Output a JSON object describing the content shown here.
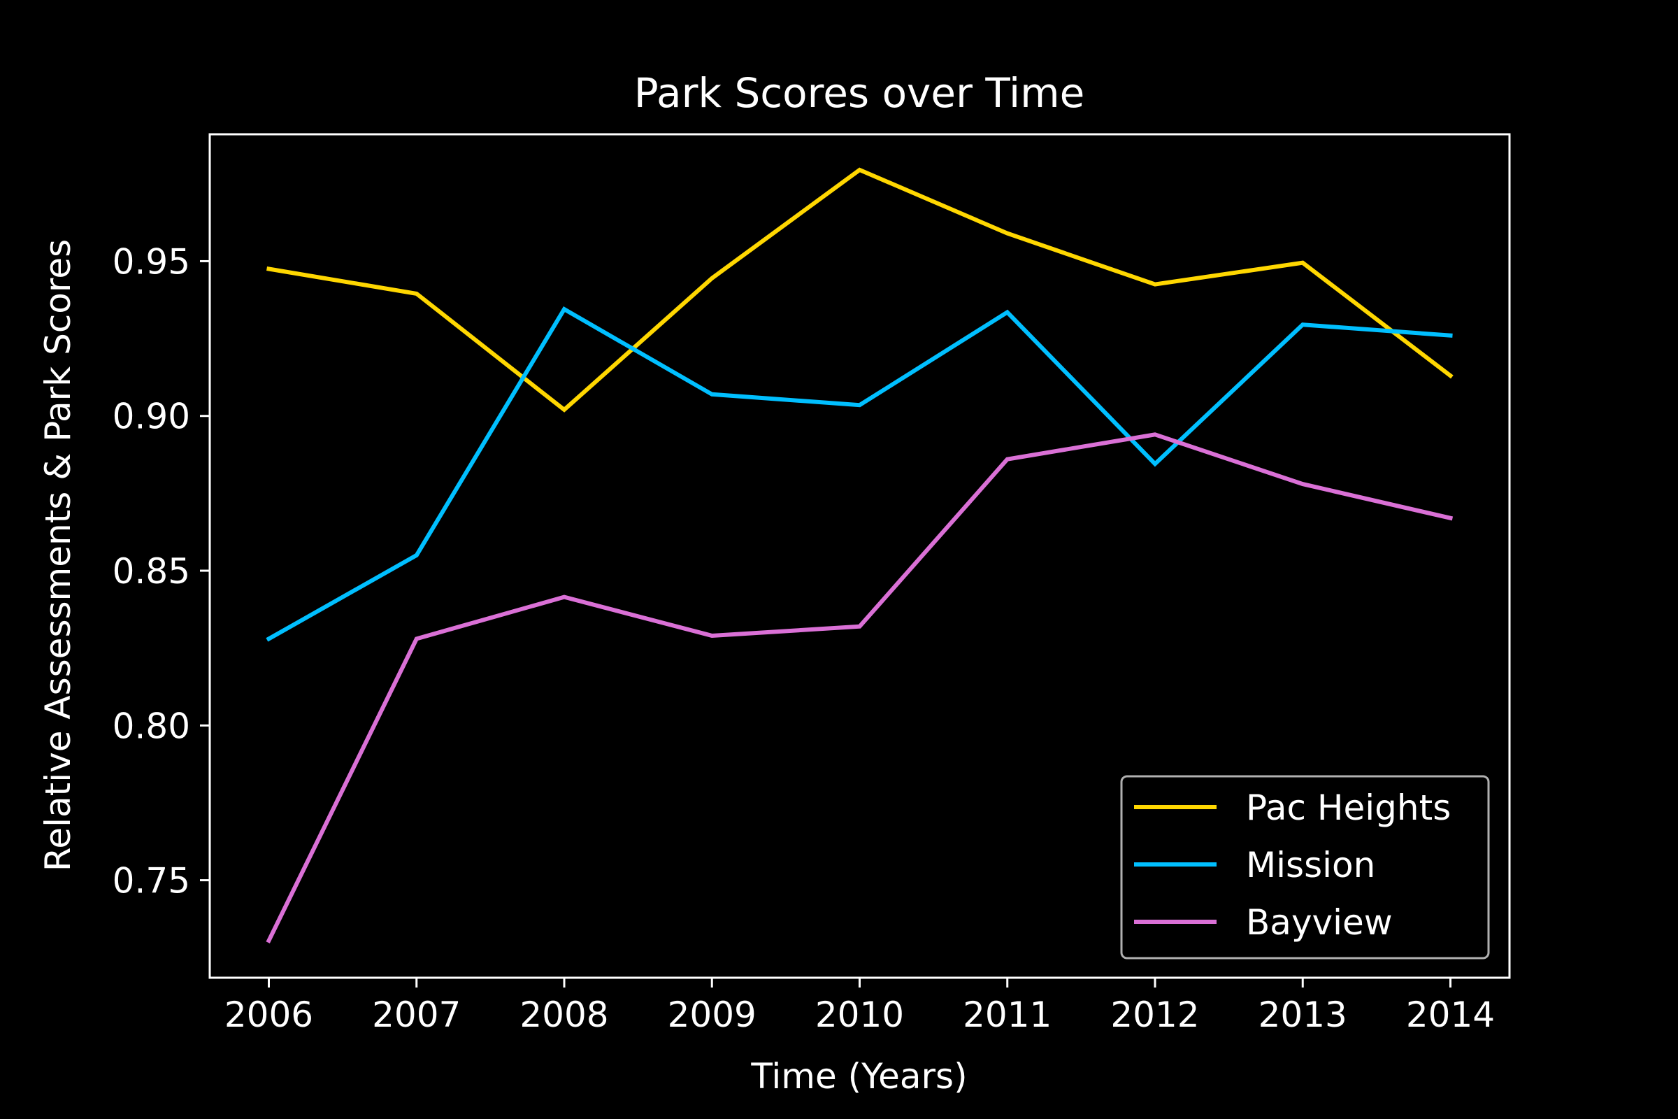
{
  "chart_data": {
    "type": "line",
    "title": "Park Scores over Time",
    "xlabel": "Time (Years)",
    "ylabel": "Relative Assessments & Park Scores",
    "x": [
      2006,
      2007,
      2008,
      2009,
      2010,
      2011,
      2012,
      2013,
      2014
    ],
    "xlim": [
      2005.6,
      2014.4
    ],
    "ylim": [
      0.7185,
      0.991
    ],
    "xticks": [
      "2006",
      "2007",
      "2008",
      "2009",
      "2010",
      "2011",
      "2012",
      "2013",
      "2014"
    ],
    "yticks": [
      0.75,
      0.8,
      0.85,
      0.9,
      0.95
    ],
    "ytick_labels": [
      "0.75",
      "0.80",
      "0.85",
      "0.90",
      "0.95"
    ],
    "grid": false,
    "legend_position": "lower-right",
    "background": "#000000",
    "series": [
      {
        "name": "Pac Heights",
        "color": "#ffd700",
        "values": [
          0.9475,
          0.9395,
          0.902,
          0.9445,
          0.9795,
          0.959,
          0.9425,
          0.9495,
          0.913
        ]
      },
      {
        "name": "Mission",
        "color": "#00bfff",
        "values": [
          0.828,
          0.855,
          0.9345,
          0.907,
          0.9035,
          0.9335,
          0.8845,
          0.9295,
          0.926
        ]
      },
      {
        "name": "Bayview",
        "color": "#da70d6",
        "values": [
          0.7305,
          0.828,
          0.8415,
          0.829,
          0.832,
          0.886,
          0.894,
          0.878,
          0.867
        ]
      }
    ]
  }
}
